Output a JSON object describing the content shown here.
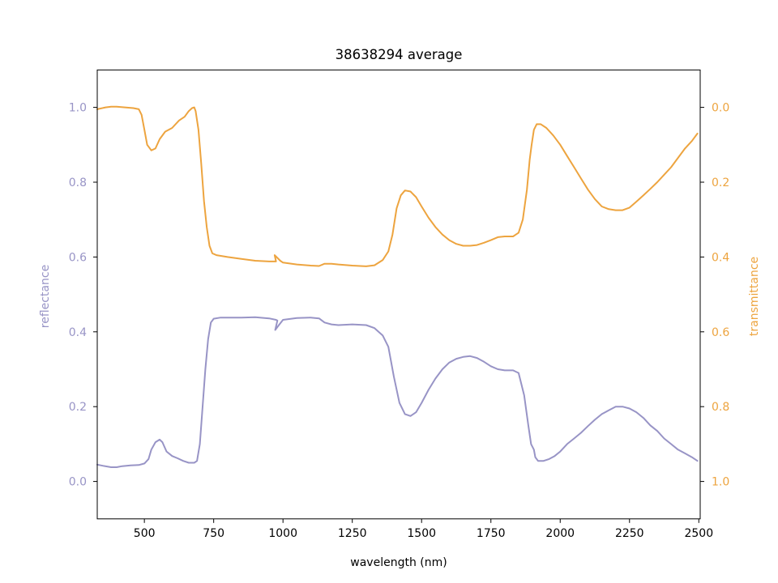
{
  "chart_data": {
    "type": "line",
    "title": "38638294 average",
    "xlabel": "wavelength (nm)",
    "ylabel_left": "reflectance",
    "ylabel_right": "transmittance",
    "xlim": [
      330,
      2505
    ],
    "ylim_left": [
      -0.1,
      1.1
    ],
    "ylim_right": [
      1.1,
      -0.1
    ],
    "right_axis_inverted": true,
    "grid": false,
    "x_ticks": [
      500,
      750,
      1000,
      1250,
      1500,
      1750,
      2000,
      2250,
      2500
    ],
    "x_tick_labels": [
      "500",
      "750",
      "1000",
      "1250",
      "1500",
      "1750",
      "2000",
      "2250",
      "2500"
    ],
    "y_left_ticks": [
      0.0,
      0.2,
      0.4,
      0.6,
      0.8,
      1.0
    ],
    "y_left_tick_labels": [
      "0.0",
      "0.2",
      "0.4",
      "0.6",
      "0.8",
      "1.0"
    ],
    "y_right_ticks": [
      0.0,
      0.2,
      0.4,
      0.6,
      0.8,
      1.0
    ],
    "y_right_tick_labels": [
      "0.0",
      "0.2",
      "0.4",
      "0.6",
      "0.8",
      "1.0"
    ],
    "colors": {
      "reflectance": "#9894c6",
      "transmittance": "#eda43f"
    },
    "series": [
      {
        "axis": "left",
        "points": [
          [
            330,
            0.045
          ],
          [
            350,
            0.042
          ],
          [
            380,
            0.038
          ],
          [
            400,
            0.038
          ],
          [
            420,
            0.041
          ],
          [
            450,
            0.043
          ],
          [
            480,
            0.044
          ],
          [
            500,
            0.048
          ],
          [
            515,
            0.06
          ],
          [
            525,
            0.085
          ],
          [
            540,
            0.105
          ],
          [
            555,
            0.112
          ],
          [
            565,
            0.105
          ],
          [
            580,
            0.08
          ],
          [
            600,
            0.068
          ],
          [
            620,
            0.062
          ],
          [
            640,
            0.055
          ],
          [
            660,
            0.05
          ],
          [
            680,
            0.05
          ],
          [
            690,
            0.055
          ],
          [
            700,
            0.1
          ],
          [
            710,
            0.2
          ],
          [
            720,
            0.3
          ],
          [
            730,
            0.38
          ],
          [
            740,
            0.425
          ],
          [
            750,
            0.435
          ],
          [
            775,
            0.438
          ],
          [
            800,
            0.438
          ],
          [
            850,
            0.438
          ],
          [
            900,
            0.439
          ],
          [
            950,
            0.436
          ],
          [
            975,
            0.432
          ],
          [
            980,
            0.43
          ],
          [
            972,
            0.405
          ],
          [
            985,
            0.418
          ],
          [
            1000,
            0.432
          ],
          [
            1050,
            0.437
          ],
          [
            1100,
            0.438
          ],
          [
            1130,
            0.436
          ],
          [
            1150,
            0.425
          ],
          [
            1175,
            0.42
          ],
          [
            1200,
            0.418
          ],
          [
            1250,
            0.42
          ],
          [
            1300,
            0.418
          ],
          [
            1330,
            0.41
          ],
          [
            1360,
            0.39
          ],
          [
            1380,
            0.36
          ],
          [
            1400,
            0.28
          ],
          [
            1420,
            0.21
          ],
          [
            1440,
            0.18
          ],
          [
            1460,
            0.175
          ],
          [
            1480,
            0.185
          ],
          [
            1500,
            0.21
          ],
          [
            1525,
            0.245
          ],
          [
            1550,
            0.275
          ],
          [
            1575,
            0.3
          ],
          [
            1600,
            0.318
          ],
          [
            1625,
            0.328
          ],
          [
            1650,
            0.333
          ],
          [
            1675,
            0.335
          ],
          [
            1700,
            0.33
          ],
          [
            1725,
            0.32
          ],
          [
            1750,
            0.308
          ],
          [
            1775,
            0.3
          ],
          [
            1800,
            0.297
          ],
          [
            1830,
            0.297
          ],
          [
            1850,
            0.29
          ],
          [
            1870,
            0.23
          ],
          [
            1885,
            0.15
          ],
          [
            1895,
            0.1
          ],
          [
            1905,
            0.085
          ],
          [
            1910,
            0.065
          ],
          [
            1920,
            0.055
          ],
          [
            1940,
            0.055
          ],
          [
            1960,
            0.06
          ],
          [
            1980,
            0.068
          ],
          [
            2000,
            0.08
          ],
          [
            2025,
            0.1
          ],
          [
            2050,
            0.115
          ],
          [
            2075,
            0.13
          ],
          [
            2100,
            0.148
          ],
          [
            2125,
            0.165
          ],
          [
            2150,
            0.18
          ],
          [
            2175,
            0.19
          ],
          [
            2200,
            0.2
          ],
          [
            2225,
            0.2
          ],
          [
            2250,
            0.195
          ],
          [
            2275,
            0.185
          ],
          [
            2300,
            0.17
          ],
          [
            2325,
            0.15
          ],
          [
            2350,
            0.135
          ],
          [
            2375,
            0.115
          ],
          [
            2400,
            0.1
          ],
          [
            2425,
            0.085
          ],
          [
            2450,
            0.075
          ],
          [
            2475,
            0.065
          ],
          [
            2495,
            0.055
          ]
        ]
      },
      {
        "axis": "right",
        "points": [
          [
            330,
            0.005
          ],
          [
            360,
            0.0
          ],
          [
            380,
            -0.002
          ],
          [
            400,
            -0.002
          ],
          [
            430,
            0.0
          ],
          [
            460,
            0.002
          ],
          [
            480,
            0.005
          ],
          [
            490,
            0.02
          ],
          [
            500,
            0.06
          ],
          [
            510,
            0.1
          ],
          [
            525,
            0.115
          ],
          [
            540,
            0.11
          ],
          [
            555,
            0.085
          ],
          [
            575,
            0.065
          ],
          [
            600,
            0.055
          ],
          [
            625,
            0.035
          ],
          [
            645,
            0.025
          ],
          [
            660,
            0.01
          ],
          [
            672,
            0.002
          ],
          [
            680,
            0.0
          ],
          [
            685,
            0.01
          ],
          [
            695,
            0.06
          ],
          [
            705,
            0.15
          ],
          [
            715,
            0.25
          ],
          [
            725,
            0.32
          ],
          [
            735,
            0.37
          ],
          [
            745,
            0.39
          ],
          [
            760,
            0.395
          ],
          [
            800,
            0.4
          ],
          [
            850,
            0.405
          ],
          [
            900,
            0.41
          ],
          [
            950,
            0.412
          ],
          [
            975,
            0.412
          ],
          [
            970,
            0.395
          ],
          [
            990,
            0.41
          ],
          [
            1000,
            0.415
          ],
          [
            1050,
            0.42
          ],
          [
            1100,
            0.423
          ],
          [
            1130,
            0.424
          ],
          [
            1150,
            0.418
          ],
          [
            1175,
            0.418
          ],
          [
            1200,
            0.42
          ],
          [
            1250,
            0.423
          ],
          [
            1300,
            0.425
          ],
          [
            1330,
            0.422
          ],
          [
            1360,
            0.408
          ],
          [
            1380,
            0.385
          ],
          [
            1395,
            0.34
          ],
          [
            1410,
            0.27
          ],
          [
            1425,
            0.235
          ],
          [
            1440,
            0.222
          ],
          [
            1460,
            0.225
          ],
          [
            1480,
            0.24
          ],
          [
            1500,
            0.265
          ],
          [
            1525,
            0.295
          ],
          [
            1550,
            0.32
          ],
          [
            1575,
            0.34
          ],
          [
            1600,
            0.355
          ],
          [
            1625,
            0.365
          ],
          [
            1650,
            0.37
          ],
          [
            1675,
            0.37
          ],
          [
            1700,
            0.368
          ],
          [
            1725,
            0.362
          ],
          [
            1750,
            0.355
          ],
          [
            1775,
            0.347
          ],
          [
            1800,
            0.345
          ],
          [
            1830,
            0.345
          ],
          [
            1850,
            0.335
          ],
          [
            1865,
            0.3
          ],
          [
            1880,
            0.22
          ],
          [
            1890,
            0.14
          ],
          [
            1897,
            0.1
          ],
          [
            1905,
            0.06
          ],
          [
            1915,
            0.045
          ],
          [
            1930,
            0.045
          ],
          [
            1950,
            0.055
          ],
          [
            1975,
            0.075
          ],
          [
            2000,
            0.1
          ],
          [
            2025,
            0.13
          ],
          [
            2050,
            0.16
          ],
          [
            2075,
            0.19
          ],
          [
            2100,
            0.22
          ],
          [
            2125,
            0.245
          ],
          [
            2150,
            0.265
          ],
          [
            2175,
            0.272
          ],
          [
            2200,
            0.275
          ],
          [
            2225,
            0.275
          ],
          [
            2250,
            0.268
          ],
          [
            2275,
            0.252
          ],
          [
            2300,
            0.235
          ],
          [
            2325,
            0.218
          ],
          [
            2350,
            0.2
          ],
          [
            2375,
            0.18
          ],
          [
            2400,
            0.16
          ],
          [
            2425,
            0.135
          ],
          [
            2450,
            0.11
          ],
          [
            2475,
            0.09
          ],
          [
            2495,
            0.07
          ]
        ]
      }
    ]
  }
}
